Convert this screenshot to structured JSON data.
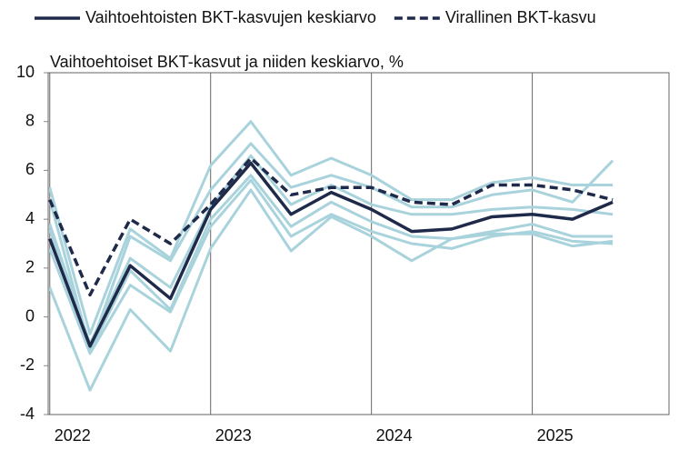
{
  "chart_data": {
    "type": "line",
    "subtitle": "Vaihtoehtoiset BKT-kasvut ja niiden keskiarvo, %",
    "x": [
      2022,
      2022.25,
      2022.5,
      2022.75,
      2023,
      2023.25,
      2023.5,
      2023.75,
      2024,
      2024.25,
      2024.5,
      2024.75,
      2025,
      2025.25,
      2025.5
    ],
    "xlim": [
      2021.99,
      2025.85
    ],
    "xticks": [
      {
        "value": 2022,
        "label": "2022"
      },
      {
        "value": 2023,
        "label": "2023"
      },
      {
        "value": 2024,
        "label": "2024"
      },
      {
        "value": 2025,
        "label": "2025"
      }
    ],
    "ylim": [
      -4,
      10
    ],
    "yticks": [
      -4,
      -2,
      0,
      2,
      4,
      6,
      8,
      10
    ],
    "grid": "x",
    "series": [
      {
        "color": "#a9d3dc",
        "values": [
          5.3,
          -0.7,
          3.6,
          2.4,
          6.2,
          8.0,
          5.8,
          6.5,
          5.8,
          4.8,
          4.8,
          5.5,
          5.7,
          5.4,
          5.4
        ]
      },
      {
        "color": "#a9d3dc",
        "values": [
          4.8,
          -1.3,
          3.3,
          2.3,
          5.2,
          7.1,
          5.3,
          5.8,
          5.3,
          4.5,
          4.5,
          5.0,
          5.2,
          4.7,
          6.4
        ]
      },
      {
        "color": "#a9d3dc",
        "values": [
          3.8,
          -1.1,
          2.4,
          1.2,
          4.5,
          6.6,
          4.6,
          5.4,
          4.6,
          4.2,
          4.2,
          4.4,
          4.5,
          4.4,
          4.2
        ]
      },
      {
        "color": "#a9d3dc",
        "values": [
          3.6,
          -1.4,
          1.9,
          0.3,
          4.0,
          5.8,
          3.7,
          4.7,
          3.9,
          3.3,
          3.2,
          3.5,
          3.8,
          3.3,
          3.3
        ]
      },
      {
        "color": "#a9d3dc",
        "values": [
          2.8,
          -1.5,
          1.3,
          0.2,
          3.7,
          5.6,
          3.3,
          4.2,
          3.5,
          3.0,
          2.8,
          3.3,
          3.5,
          3.1,
          3.0
        ]
      },
      {
        "color": "#a9d3dc",
        "values": [
          1.2,
          -3.0,
          0.3,
          -1.4,
          2.8,
          5.2,
          2.7,
          4.1,
          3.3,
          2.3,
          3.2,
          3.4,
          3.4,
          2.9,
          3.1
        ]
      },
      {
        "name": "Vaihtoehtoisten BKT-kasvujen keskiarvo",
        "color": "#1f2a4a",
        "dash": false,
        "values": [
          3.2,
          -1.2,
          2.1,
          0.75,
          4.4,
          6.3,
          4.2,
          5.1,
          4.4,
          3.5,
          3.6,
          4.1,
          4.2,
          4.0,
          4.7
        ]
      },
      {
        "name": "Virallinen BKT-kasvu",
        "color": "#1f2a4a",
        "dash": true,
        "values": [
          4.8,
          0.9,
          4.0,
          3.0,
          4.6,
          6.5,
          5.0,
          5.3,
          5.3,
          4.7,
          4.6,
          5.4,
          5.4,
          5.2,
          4.8
        ]
      }
    ]
  }
}
